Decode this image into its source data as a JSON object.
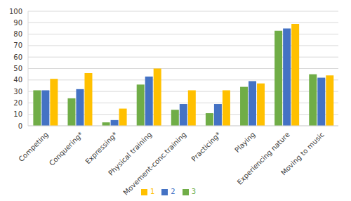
{
  "chart_data": {
    "type": "bar",
    "categories": [
      "Competing",
      "Conquering*",
      "Expressing*",
      "Physical training",
      "Movement-conc.training",
      "Practicing*",
      "Playing",
      "Experiencing nature",
      "Moving to music"
    ],
    "series": [
      {
        "name": "3",
        "color": "#70ad47",
        "values": [
          31,
          24,
          3,
          36,
          14,
          11,
          34,
          83,
          45
        ]
      },
      {
        "name": "2",
        "color": "#4472c4",
        "values": [
          31,
          32,
          5,
          43,
          19,
          19,
          39,
          85,
          42
        ]
      },
      {
        "name": "1",
        "color": "#ffc000",
        "values": [
          41,
          46,
          15,
          50,
          31,
          31,
          37,
          89,
          44
        ]
      }
    ],
    "ylim": [
      0,
      100
    ],
    "yticks": [
      0,
      10,
      20,
      30,
      40,
      50,
      60,
      70,
      80,
      90,
      100
    ],
    "grid": true,
    "legend": "bottom"
  }
}
